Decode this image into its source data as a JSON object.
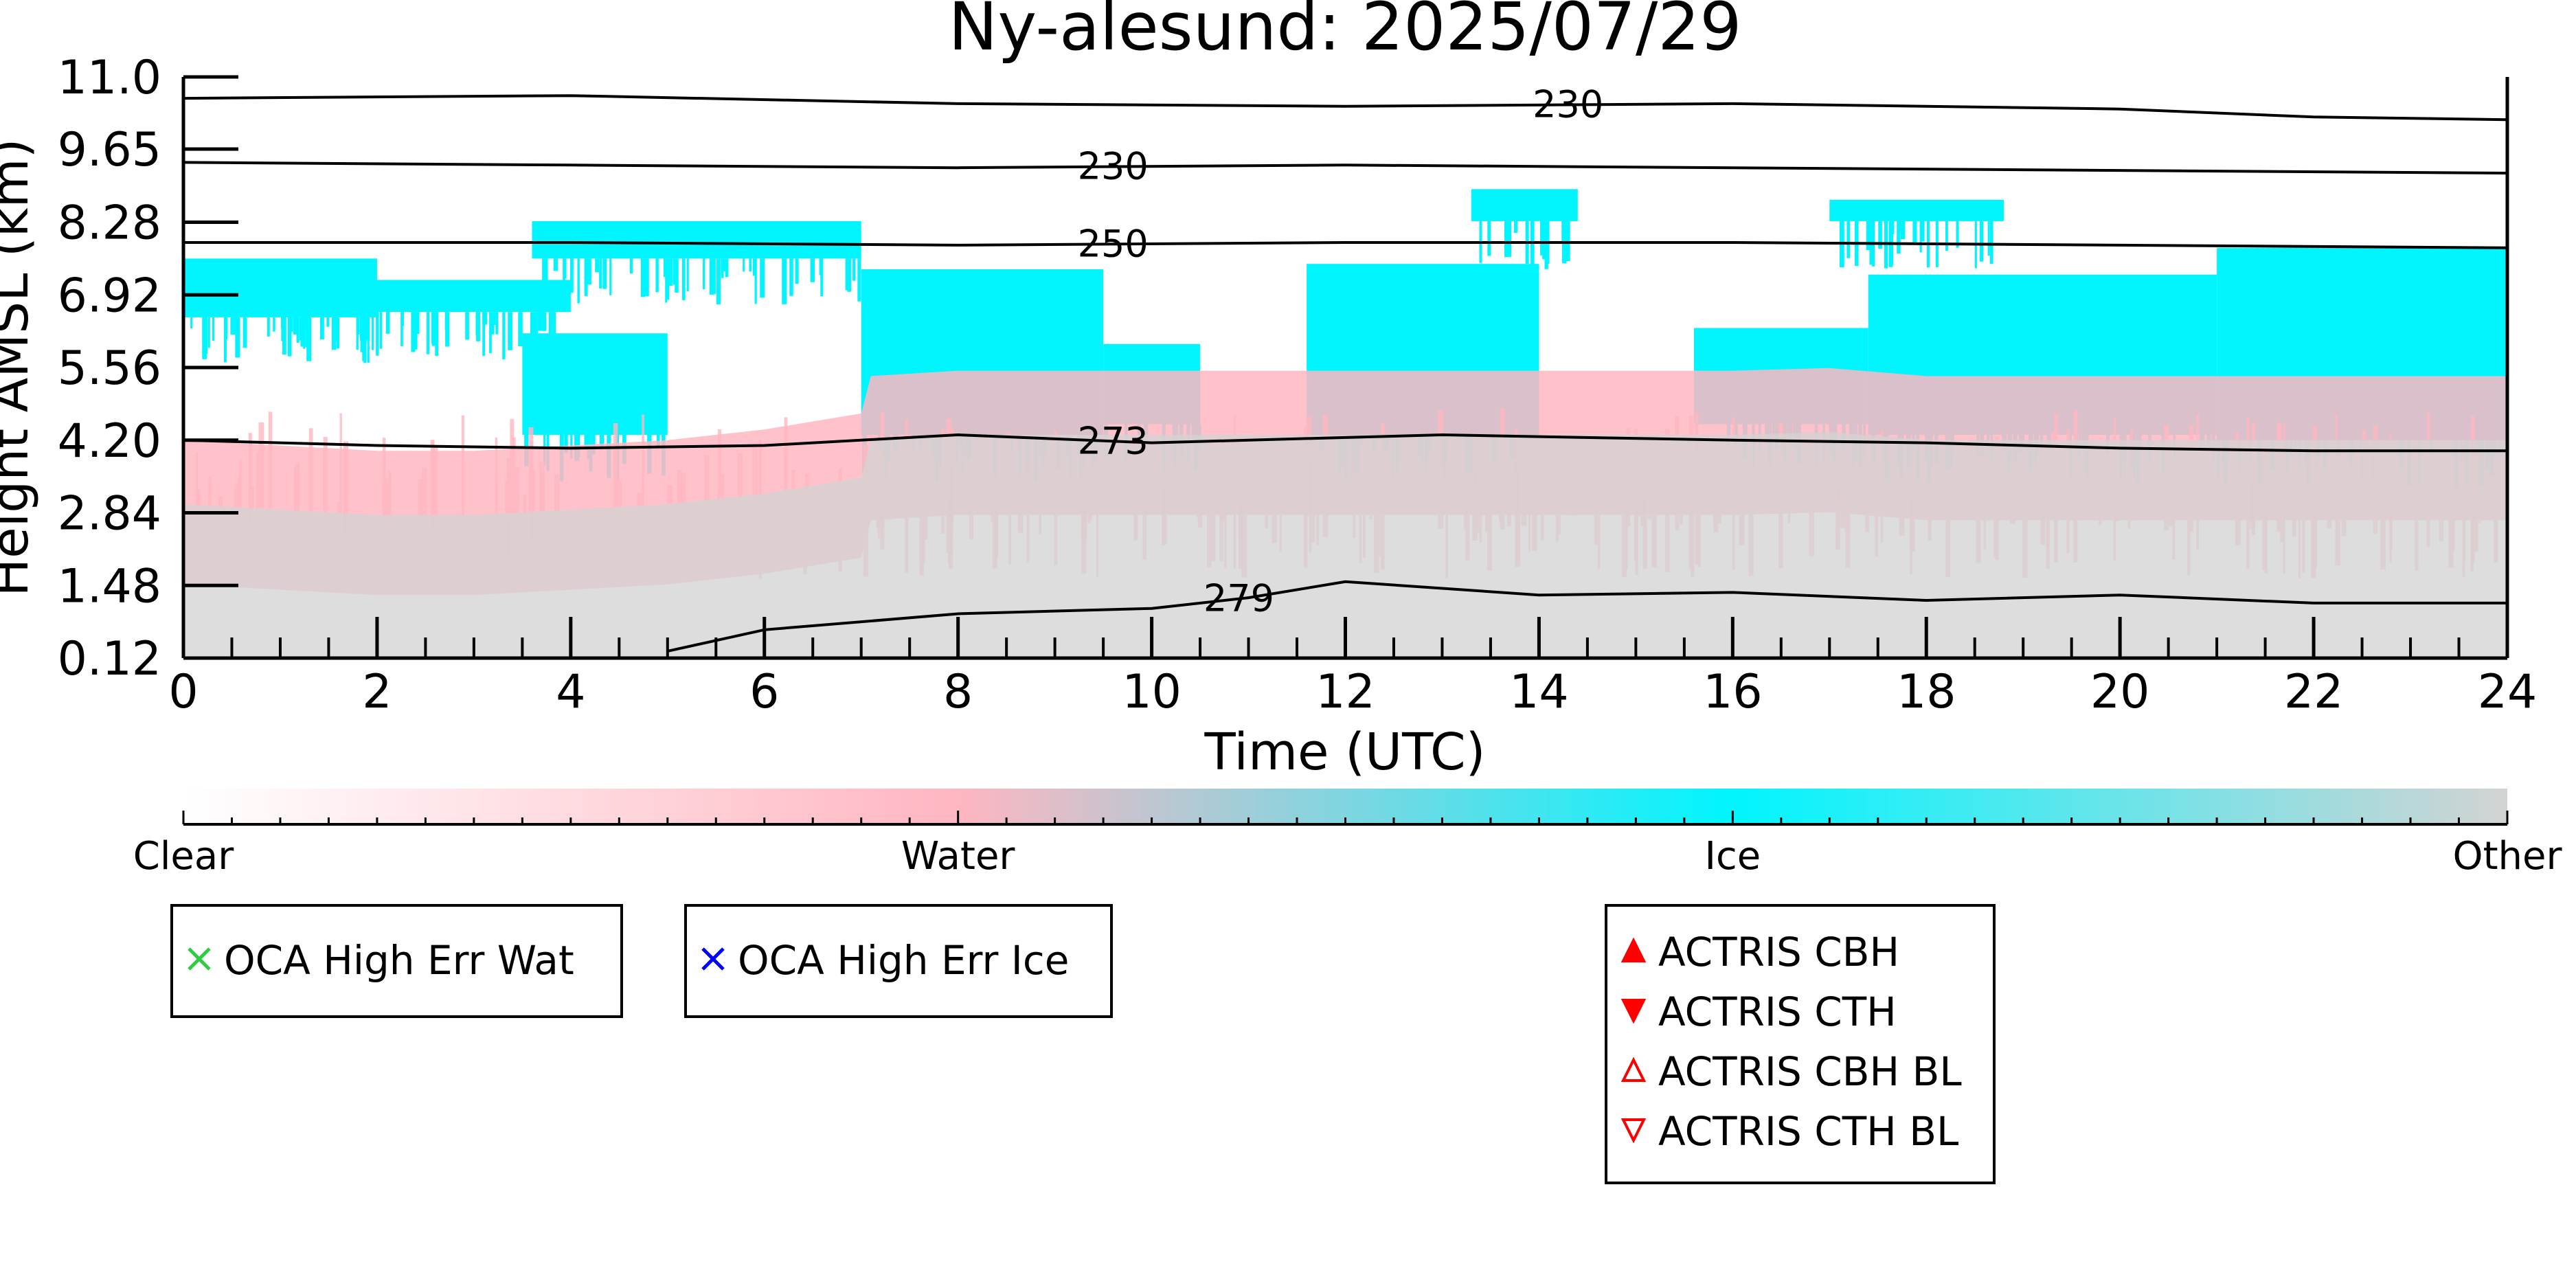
{
  "chart_data": {
    "type": "heatmap",
    "title": "Ny-alesund: 2025/07/29",
    "xlabel": "Time (UTC)",
    "ylabel": "Height AMSL (km)",
    "xlim": [
      0,
      24
    ],
    "ylim": [
      0.12,
      11.0
    ],
    "x_ticks": [
      "0",
      "2",
      "4",
      "6",
      "8",
      "10",
      "12",
      "14",
      "16",
      "18",
      "20",
      "22",
      "24"
    ],
    "y_ticks": [
      "0.12",
      "1.48",
      "2.84",
      "4.20",
      "5.56",
      "6.92",
      "8.28",
      "9.65",
      "11.0"
    ],
    "colorbar": {
      "categories": [
        "Clear",
        "Water",
        "Ice",
        "Other"
      ],
      "colors": [
        "#ffffff",
        "#ffb6c1",
        "#00f5ff",
        "#d3d3d3"
      ]
    },
    "regions": {
      "other_top": [
        [
          0,
          3.0
        ],
        [
          1,
          2.9
        ],
        [
          2,
          2.8
        ],
        [
          3,
          2.8
        ],
        [
          4,
          2.9
        ],
        [
          5,
          3.0
        ],
        [
          6,
          3.2
        ],
        [
          7,
          3.5
        ],
        [
          7.1,
          4.2
        ],
        [
          8,
          4.3
        ],
        [
          10,
          4.3
        ],
        [
          12,
          4.3
        ],
        [
          13,
          4.3
        ],
        [
          15,
          4.3
        ],
        [
          16,
          4.3
        ],
        [
          17,
          4.35
        ],
        [
          18,
          4.2
        ],
        [
          20,
          4.2
        ],
        [
          22,
          4.2
        ],
        [
          24,
          4.2
        ]
      ],
      "ice_segments": [
        {
          "x0": 0.0,
          "x1": 2.0,
          "top": 7.6,
          "bottom": 6.5
        },
        {
          "x0": 1.0,
          "x1": 4.0,
          "top": 7.2,
          "bottom": 6.6
        },
        {
          "x0": 3.6,
          "x1": 7.0,
          "top": 8.3,
          "bottom": 7.6
        },
        {
          "x0": 3.5,
          "x1": 5.0,
          "top": 6.2,
          "bottom": 4.3
        },
        {
          "x0": 7.0,
          "x1": 9.5,
          "top": 7.4,
          "bottom": 4.3
        },
        {
          "x0": 9.5,
          "x1": 10.5,
          "top": 6.0,
          "bottom": 4.5
        },
        {
          "x0": 11.6,
          "x1": 14.0,
          "top": 7.5,
          "bottom": 4.3
        },
        {
          "x0": 15.6,
          "x1": 17.4,
          "top": 6.3,
          "bottom": 4.5
        },
        {
          "x0": 17.4,
          "x1": 21.0,
          "top": 7.3,
          "bottom": 4.3
        },
        {
          "x0": 21.0,
          "x1": 24.0,
          "top": 7.8,
          "bottom": 4.2
        },
        {
          "x0": 13.3,
          "x1": 14.4,
          "top": 8.9,
          "bottom": 8.3
        },
        {
          "x0": 17.0,
          "x1": 18.8,
          "top": 8.7,
          "bottom": 8.3
        }
      ]
    },
    "contours": [
      {
        "label": "230",
        "label_x": 14.3,
        "points": [
          [
            0,
            10.6
          ],
          [
            4,
            10.65
          ],
          [
            8,
            10.5
          ],
          [
            12,
            10.45
          ],
          [
            16,
            10.5
          ],
          [
            20,
            10.4
          ],
          [
            22,
            10.25
          ],
          [
            24,
            10.2
          ]
        ]
      },
      {
        "label": "230",
        "label_x": 9.6,
        "points": [
          [
            0,
            9.4
          ],
          [
            4,
            9.35
          ],
          [
            8,
            9.3
          ],
          [
            12,
            9.35
          ],
          [
            16,
            9.3
          ],
          [
            20,
            9.25
          ],
          [
            24,
            9.2
          ]
        ]
      },
      {
        "label": "250",
        "label_x": 9.6,
        "points": [
          [
            0,
            7.9
          ],
          [
            4,
            7.9
          ],
          [
            8,
            7.85
          ],
          [
            12,
            7.9
          ],
          [
            16,
            7.9
          ],
          [
            20,
            7.85
          ],
          [
            24,
            7.8
          ]
        ]
      },
      {
        "label": "273",
        "label_x": 9.6,
        "points": [
          [
            0,
            4.2
          ],
          [
            2,
            4.1
          ],
          [
            4,
            4.05
          ],
          [
            6,
            4.1
          ],
          [
            8,
            4.3
          ],
          [
            10,
            4.15
          ],
          [
            13,
            4.3
          ],
          [
            16,
            4.2
          ],
          [
            18,
            4.15
          ],
          [
            20,
            4.05
          ],
          [
            22,
            4.0
          ],
          [
            24,
            4.0
          ]
        ]
      },
      {
        "label": "279",
        "label_x": 10.9,
        "points": [
          [
            5,
            0.25
          ],
          [
            6,
            0.65
          ],
          [
            8,
            0.95
          ],
          [
            10,
            1.05
          ],
          [
            11,
            1.25
          ],
          [
            12,
            1.55
          ],
          [
            14,
            1.3
          ],
          [
            16,
            1.35
          ],
          [
            18,
            1.2
          ],
          [
            20,
            1.3
          ],
          [
            22,
            1.15
          ],
          [
            24,
            1.15
          ]
        ]
      }
    ],
    "legends": [
      {
        "entries": [
          {
            "label": "OCA High Err Wat",
            "marker": "x",
            "color": "#2ecc40"
          }
        ]
      },
      {
        "entries": [
          {
            "label": "OCA High Err Ice",
            "marker": "x",
            "color": "#0000ff"
          }
        ]
      },
      {
        "entries": [
          {
            "label": "ACTRIS CBH",
            "marker": "triangle-up-filled",
            "color": "#ff0000"
          },
          {
            "label": "ACTRIS CTH",
            "marker": "triangle-down-filled",
            "color": "#ff0000"
          },
          {
            "label": "ACTRIS CBH BL",
            "marker": "triangle-up-open",
            "color": "#ff0000"
          },
          {
            "label": "ACTRIS CTH BL",
            "marker": "triangle-down-open",
            "color": "#ff0000"
          }
        ]
      }
    ]
  }
}
